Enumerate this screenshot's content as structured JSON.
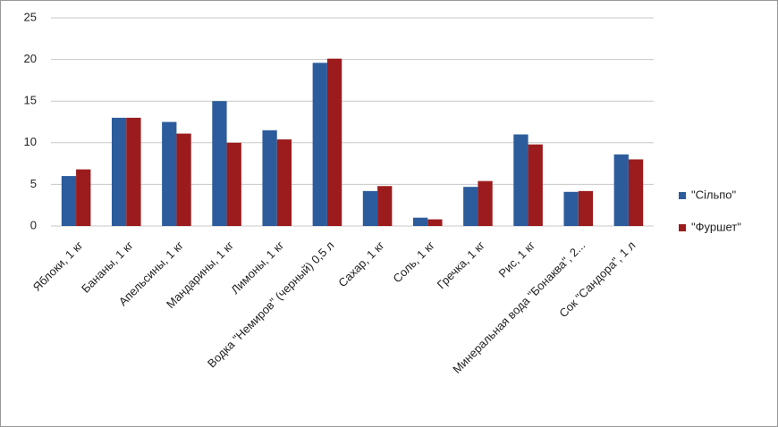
{
  "chart_data": {
    "type": "bar",
    "categories": [
      "Яблоки, 1 кг",
      "Бананы, 1 кг",
      "Апельсины, 1 кг",
      "Мандарины, 1 кг",
      "Лимоны, 1 кг",
      "Водка \"Немиров\" (черный) 0,5 л",
      "Сахар, 1 кг",
      "Соль, 1 кг",
      "Гречка, 1 кг",
      "Рис, 1 кг",
      "Минеральная вода \"Бонаква\", 2...",
      "Сок \"Сандора\", 1 л"
    ],
    "series": [
      {
        "name": "\"Сільпо\"",
        "color": "#2c5c9c",
        "values": [
          6.0,
          13.0,
          12.5,
          15.0,
          11.5,
          19.6,
          4.2,
          1.0,
          4.7,
          11.0,
          4.1,
          8.6
        ]
      },
      {
        "name": "\"Фуршет\"",
        "color": "#9c1c1e",
        "values": [
          6.8,
          13.0,
          11.1,
          10.0,
          10.4,
          20.1,
          4.8,
          0.8,
          5.4,
          9.8,
          4.2,
          8.0
        ]
      }
    ],
    "ylim": [
      0,
      25
    ],
    "yticks": [
      0,
      5,
      10,
      15,
      20,
      25
    ],
    "grid": true,
    "legend": "right"
  }
}
